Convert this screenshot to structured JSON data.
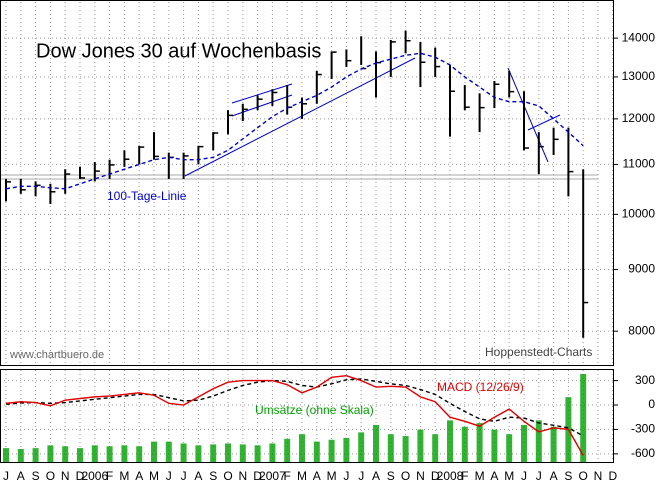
{
  "chart_data": {
    "type": "ohlc",
    "title": "Dow Jones 30 auf Wochenbasis",
    "categories": [
      "J",
      "A",
      "S",
      "O",
      "N",
      "D",
      "2006",
      "F",
      "M",
      "A",
      "M",
      "J",
      "J",
      "A",
      "S",
      "O",
      "N",
      "D",
      "2007",
      "F",
      "M",
      "A",
      "M",
      "J",
      "J",
      "A",
      "S",
      "O",
      "N",
      "D",
      "2008",
      "F",
      "M",
      "A",
      "M",
      "J",
      "J",
      "A",
      "S",
      "O",
      "N",
      "D"
    ],
    "high": [
      10700,
      10700,
      10650,
      10600,
      10900,
      10950,
      11050,
      11100,
      11300,
      11400,
      11700,
      11250,
      11250,
      11400,
      11700,
      12200,
      12350,
      12550,
      12700,
      12800,
      12500,
      13150,
      13650,
      13700,
      14050,
      13650,
      13950,
      14200,
      13900,
      13750,
      13300,
      12800,
      12600,
      12900,
      13150,
      12650,
      11700,
      11800,
      11800,
      10900,
      null,
      null
    ],
    "low": [
      10250,
      10400,
      10350,
      10200,
      10400,
      10700,
      10650,
      10700,
      10950,
      11000,
      11100,
      10700,
      10700,
      11000,
      11300,
      11650,
      11950,
      12200,
      12300,
      12100,
      12000,
      12350,
      12950,
      13250,
      13300,
      12500,
      13000,
      13600,
      12750,
      13000,
      11600,
      12200,
      11700,
      12250,
      12500,
      11300,
      10800,
      11200,
      10350,
      7900,
      null,
      null
    ],
    "close": [
      10640,
      10480,
      10570,
      10440,
      10800,
      10720,
      10860,
      10990,
      11110,
      11370,
      11170,
      11150,
      11180,
      11380,
      11680,
      12080,
      12220,
      12460,
      12620,
      12270,
      12350,
      13060,
      13630,
      13410,
      13210,
      13360,
      13900,
      13930,
      13370,
      13260,
      12650,
      12270,
      12260,
      12820,
      12640,
      11350,
      11380,
      11540,
      10850,
      8450,
      null,
      null
    ],
    "color": "#000000",
    "moving_average": {
      "name": "100-Tage-Linie",
      "color": "#0000cc",
      "values": [
        10500,
        10550,
        10550,
        10520,
        10500,
        10600,
        10700,
        10800,
        10900,
        11000,
        11100,
        11150,
        11100,
        11100,
        11150,
        11300,
        11550,
        11800,
        12050,
        12250,
        12400,
        12550,
        12750,
        13000,
        13200,
        13350,
        13450,
        13550,
        13600,
        13500,
        13300,
        13000,
        12750,
        12500,
        12400,
        12400,
        12300,
        12000,
        11700,
        11400,
        null,
        null
      ]
    },
    "macd": {
      "name": "MACD (12/26/9)",
      "color": "#e00000",
      "values": [
        20,
        40,
        30,
        -10,
        60,
        80,
        100,
        110,
        130,
        150,
        120,
        20,
        0,
        100,
        200,
        280,
        300,
        300,
        300,
        250,
        150,
        220,
        340,
        360,
        300,
        220,
        230,
        220,
        100,
        40,
        -150,
        -200,
        -260,
        -150,
        -50,
        -200,
        -330,
        -280,
        -300,
        -620,
        null,
        null
      ]
    },
    "signal": {
      "color": "#000000",
      "values": [
        10,
        25,
        30,
        20,
        30,
        50,
        70,
        90,
        110,
        130,
        130,
        90,
        50,
        60,
        110,
        180,
        240,
        280,
        300,
        290,
        240,
        220,
        260,
        310,
        320,
        290,
        260,
        240,
        190,
        130,
        20,
        -80,
        -170,
        -200,
        -150,
        -160,
        -220,
        -250,
        -280,
        -380,
        null,
        null
      ]
    },
    "volume": {
      "name": "Umsätze (ohne Skala)",
      "color": "#00a000",
      "values": [
        15,
        14,
        15,
        18,
        17,
        15,
        18,
        17,
        18,
        17,
        22,
        22,
        20,
        18,
        19,
        20,
        19,
        18,
        20,
        25,
        30,
        22,
        24,
        26,
        32,
        40,
        30,
        28,
        35,
        30,
        45,
        38,
        42,
        35,
        30,
        40,
        45,
        38,
        70,
        95,
        null,
        null
      ]
    },
    "annotations": [
      "www.chartbuero.de",
      "Hoppenstedt-Charts"
    ],
    "ylim": [
      7500,
      15000
    ],
    "log_scale": true,
    "yticks": [
      8000,
      9000,
      10000,
      11000,
      12000,
      13000,
      14000
    ],
    "y2lim": [
      -700,
      430
    ],
    "y2ticks": [
      300,
      0,
      -300,
      -600
    ],
    "grid": true
  }
}
